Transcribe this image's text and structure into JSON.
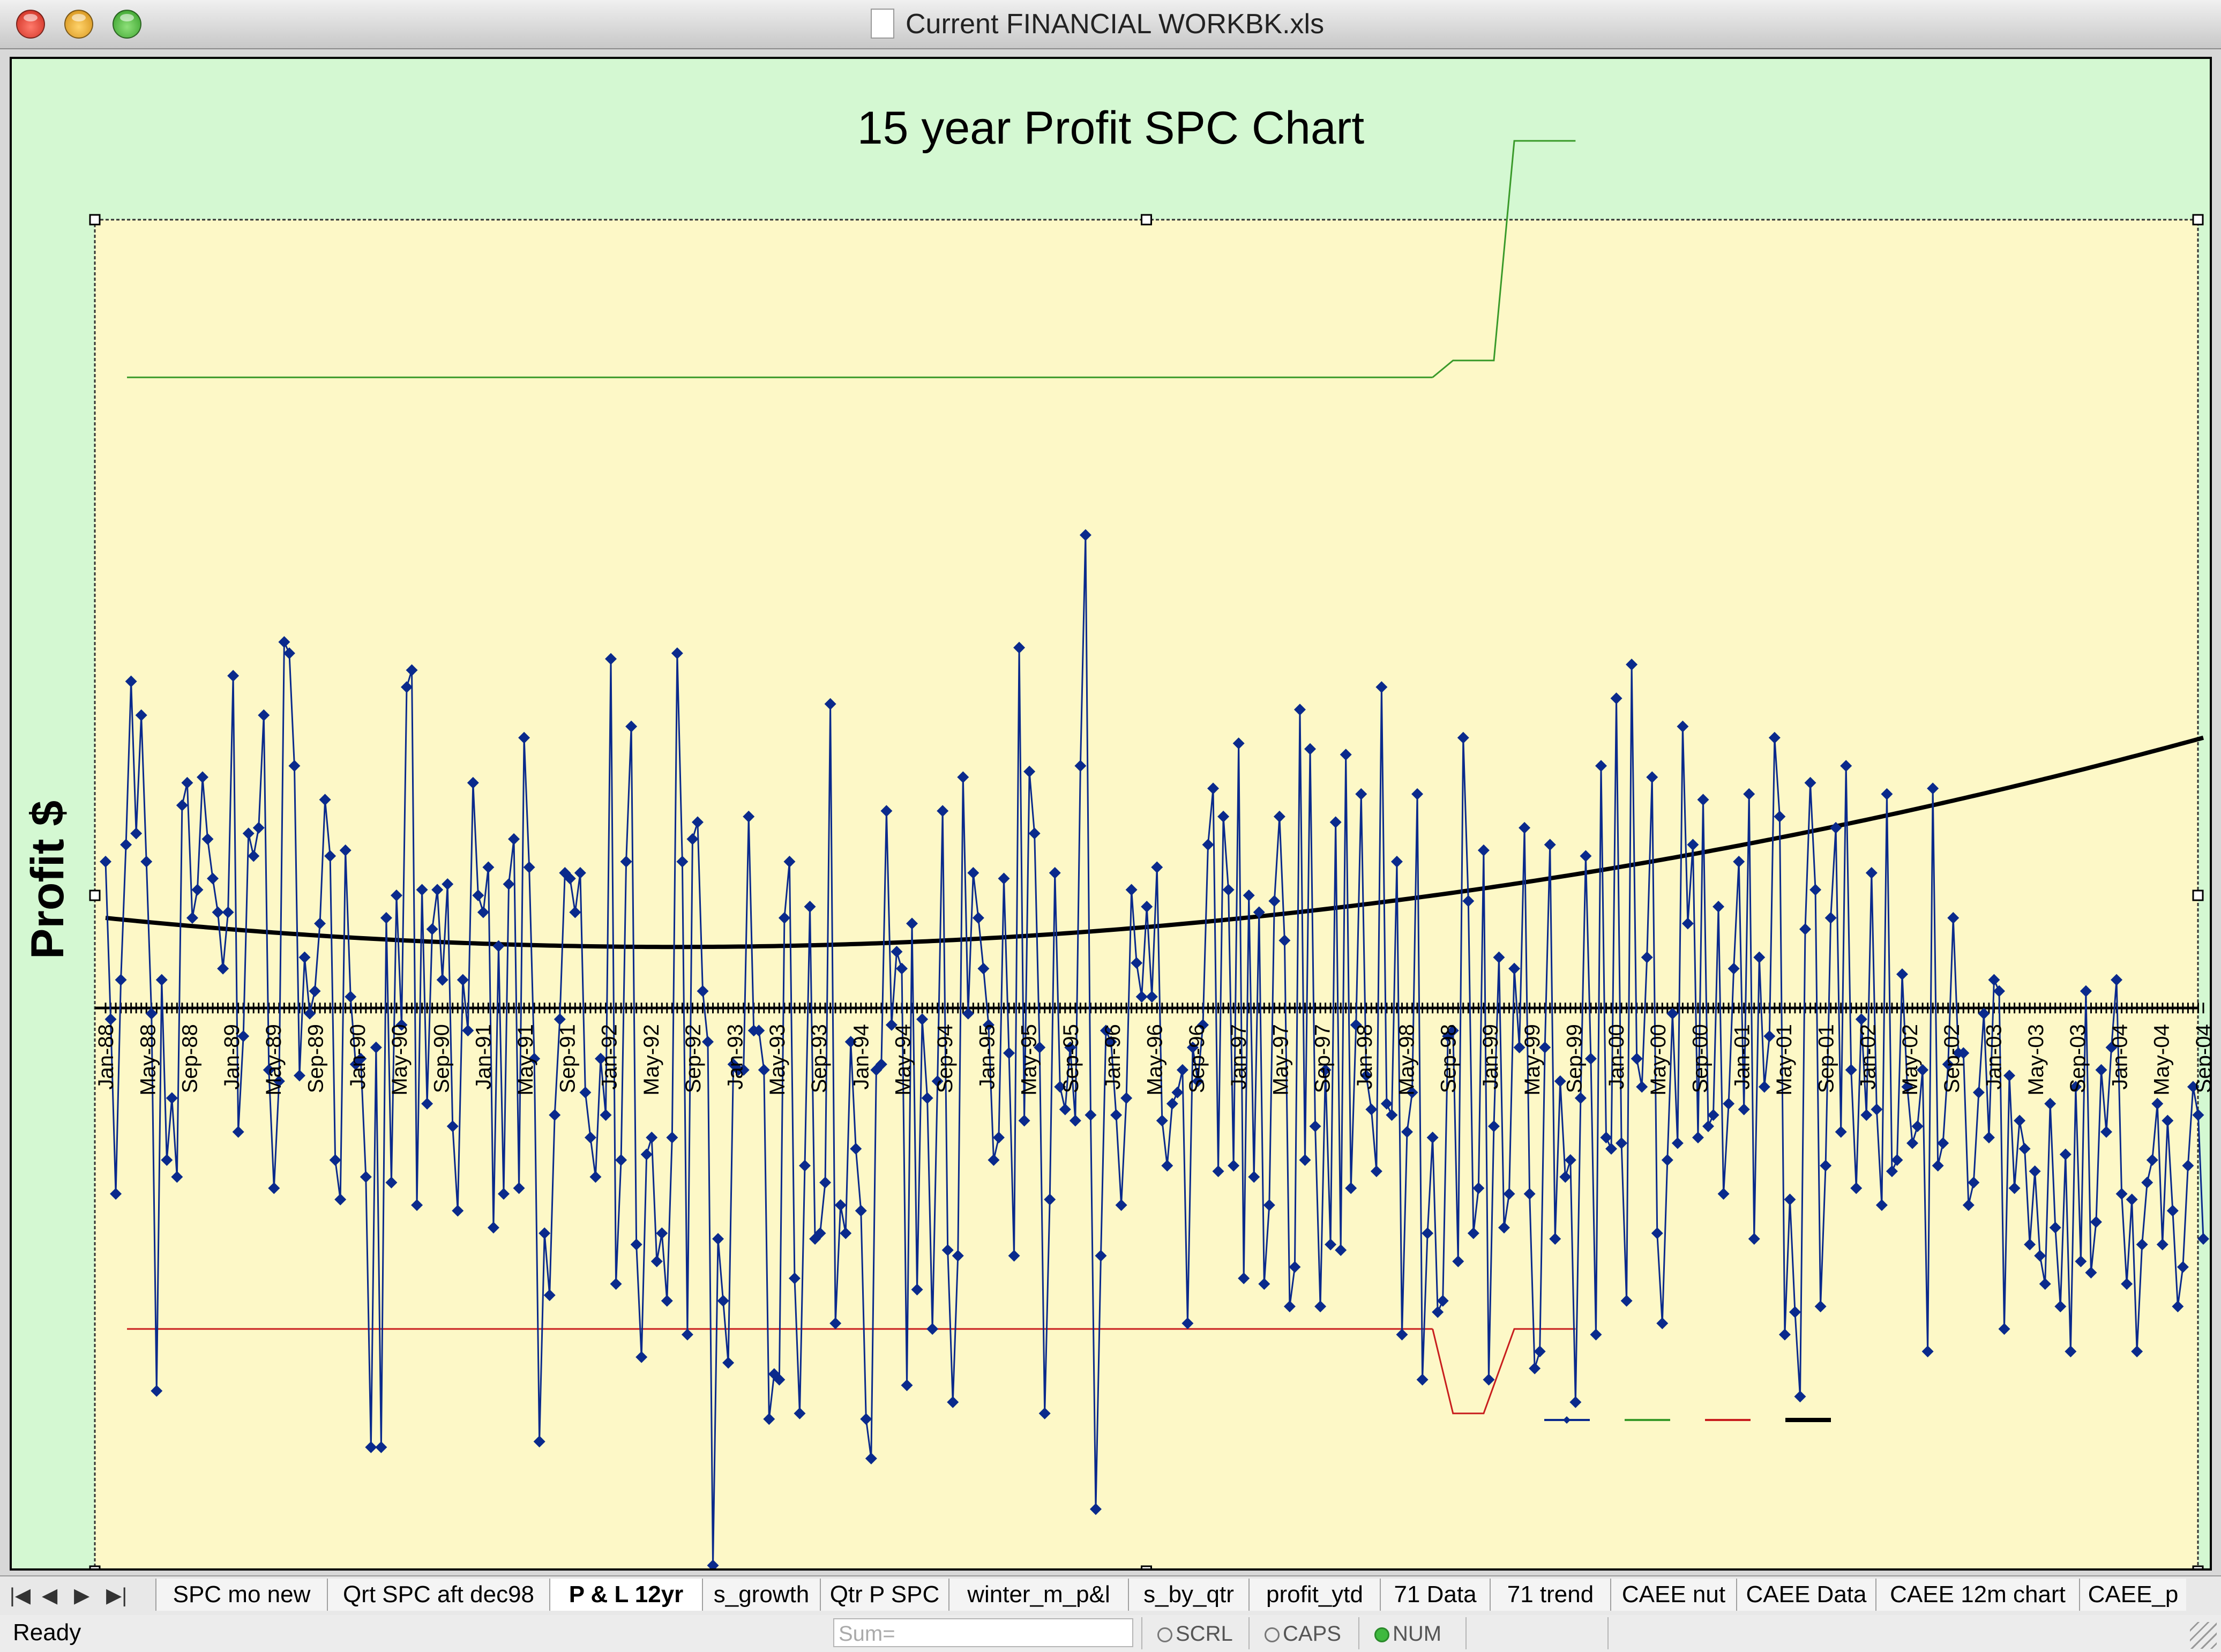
{
  "window": {
    "title": "Current FINANCIAL WORKBK.xls"
  },
  "chart_data": {
    "type": "line",
    "title": "15 year Profit SPC Chart",
    "ylabel": "Profit $",
    "xlabel": "",
    "x_tick_labels": [
      "Jan-88",
      "May-88",
      "Sep-88",
      "Jan-89",
      "May-89",
      "Sep-89",
      "Jan-90",
      "May-90",
      "Sep-90",
      "Jan-91",
      "May-91",
      "Sep-91",
      "Jan-92",
      "May-92",
      "Sep-92",
      "Jan-93",
      "May-93",
      "Sep-93",
      "Jan-94",
      "May-94",
      "Sep-94",
      "Jan-95",
      "May-95",
      "Sep-95",
      "Jan-96",
      "May-96",
      "Sep-96",
      "Jan-97",
      "May-97",
      "Sep-97",
      "Jan-98",
      "May-98",
      "Sep-98",
      "Jan-99",
      "May-99",
      "Sep-99",
      "Jan-00",
      "May-00",
      "Sep-00",
      "Jan-01",
      "May-01",
      "Sep-01",
      "Jan-02",
      "May-02",
      "Sep-02",
      "Jan-03",
      "May-03",
      "Sep-03",
      "Jan-04",
      "May-04",
      "Sep-04"
    ],
    "ylim": [
      -100,
      140
    ],
    "grid": false,
    "legend": "bottom-right",
    "series": [
      {
        "role": "profit",
        "color": "#0a2a8c",
        "marker": "diamond",
        "values": [
          26,
          -2,
          -33,
          5,
          29,
          58,
          31,
          52,
          26,
          -1,
          -68,
          5,
          -27,
          -16,
          -30,
          36,
          40,
          16,
          21,
          41,
          30,
          23,
          17,
          7,
          17,
          59,
          -22,
          -5,
          31,
          27,
          32,
          52,
          -11,
          -32,
          -13,
          65,
          63,
          43,
          -12,
          9,
          -1,
          3,
          15,
          37,
          27,
          -27,
          -34,
          28,
          2,
          -10,
          -9,
          -30,
          -78,
          -7,
          -78,
          16,
          -31,
          20,
          -3,
          57,
          60,
          -35,
          21,
          -17,
          14,
          21,
          5,
          22,
          -21,
          -36,
          5,
          -4,
          40,
          20,
          17,
          25,
          -39,
          11,
          -33,
          22,
          30,
          -32,
          48,
          25,
          -9,
          -77,
          -40,
          -51,
          -19,
          -2,
          24,
          23,
          17,
          24,
          -15,
          -23,
          -30,
          -9,
          -19,
          62,
          -49,
          -27,
          26,
          50,
          -42,
          -62,
          -26,
          -23,
          -45,
          -40,
          -52,
          -23,
          63,
          26,
          -58,
          30,
          33,
          3,
          -6,
          -99,
          -41,
          -52,
          -63,
          -10,
          -11,
          -11,
          34,
          -4,
          -4,
          -11,
          -73,
          -65,
          -66,
          16,
          26,
          -48,
          -72,
          -28,
          18,
          -41,
          -40,
          -31,
          54,
          -56,
          -35,
          -40,
          -6,
          -25,
          -36,
          -73,
          -80,
          -11,
          -10,
          35,
          -3,
          10,
          7,
          -67,
          15,
          -50,
          -2,
          -16,
          -57,
          -13,
          35,
          -43,
          -70,
          -44,
          41,
          -1,
          24,
          16,
          7,
          -3,
          -27,
          -23,
          23,
          -8,
          -44,
          64,
          -20,
          42,
          31,
          -7,
          -72,
          -34,
          24,
          -14,
          -18,
          -7,
          -20,
          43,
          84,
          -19,
          -89,
          -44,
          -4,
          -6,
          -19,
          -35,
          -16,
          21,
          8,
          2,
          18,
          2,
          25,
          -20,
          -28,
          -17,
          -15,
          -11,
          -56,
          -7,
          -13,
          -3,
          29,
          39,
          -29,
          34,
          21,
          -28,
          47,
          -48,
          20,
          -30,
          17,
          -49,
          -35,
          19,
          34,
          12,
          -53,
          -46,
          53,
          -27,
          46,
          -21,
          -53,
          -11,
          -42,
          33,
          -43,
          45,
          -32,
          -3,
          38,
          -12,
          -18,
          -29,
          57,
          -17,
          -19,
          26,
          -58,
          -22,
          -15,
          38,
          -66,
          -40,
          -23,
          -54,
          -52,
          -5,
          -4,
          -45,
          48,
          19,
          -40,
          -32,
          28,
          -66,
          -21,
          9,
          -39,
          -33,
          7,
          -7,
          32,
          -33,
          -64,
          -61,
          -7,
          29,
          -41,
          -13,
          -30,
          -27,
          -70,
          -16,
          27,
          -9,
          -58,
          43,
          -23,
          -25,
          55,
          -24,
          -52,
          61,
          -9,
          -14,
          9,
          41,
          -40,
          -56,
          -27,
          -1,
          -24,
          50,
          15,
          29,
          -23,
          37,
          -21,
          -19,
          18,
          -33,
          -17,
          7,
          26,
          -18,
          38,
          -41,
          9,
          -14,
          -5,
          48,
          34,
          -58,
          -34,
          -54,
          -69,
          14,
          40,
          21,
          -53,
          -28,
          16,
          32,
          -22,
          43,
          -11,
          -32,
          -2,
          -19,
          24,
          -18,
          -35,
          38,
          -29,
          -27,
          6,
          -14,
          -24,
          -21,
          -11,
          -61,
          39,
          -28,
          -24,
          -10,
          16,
          -8,
          -8,
          -35,
          -31,
          -15,
          -1,
          -23,
          5,
          3,
          -57,
          -12,
          -32,
          -20,
          -25,
          -42,
          -29,
          -44,
          -49,
          -17,
          -39,
          -53,
          -26,
          -61,
          -14,
          -45,
          3,
          -47,
          -38,
          -11,
          -22,
          -7,
          5,
          -33,
          -49,
          -34,
          -61,
          -42,
          -31,
          -27,
          -17,
          -42,
          -20,
          -36,
          -53,
          -46,
          -28,
          -14,
          -19,
          -41
        ]
      }
    ]
  },
  "tabs": {
    "nav": [
      "|◀",
      "◀",
      "▶",
      "▶|"
    ],
    "items": [
      "SPC mo new",
      "Qrt SPC aft dec98",
      "P & L 12yr",
      "s_growth",
      "Qtr P SPC",
      "winter_m_p&l",
      "s_by_qtr",
      "profit_ytd",
      "71 Data",
      "71 trend",
      "CAEE nut",
      "CAEE Data",
      "CAEE 12m chart",
      "CAEE_p"
    ],
    "active": "P & L 12yr"
  },
  "status": {
    "text": "Ready",
    "sum_placeholder": "Sum=",
    "scrl": "SCRL",
    "caps": "CAPS",
    "num": "NUM"
  }
}
